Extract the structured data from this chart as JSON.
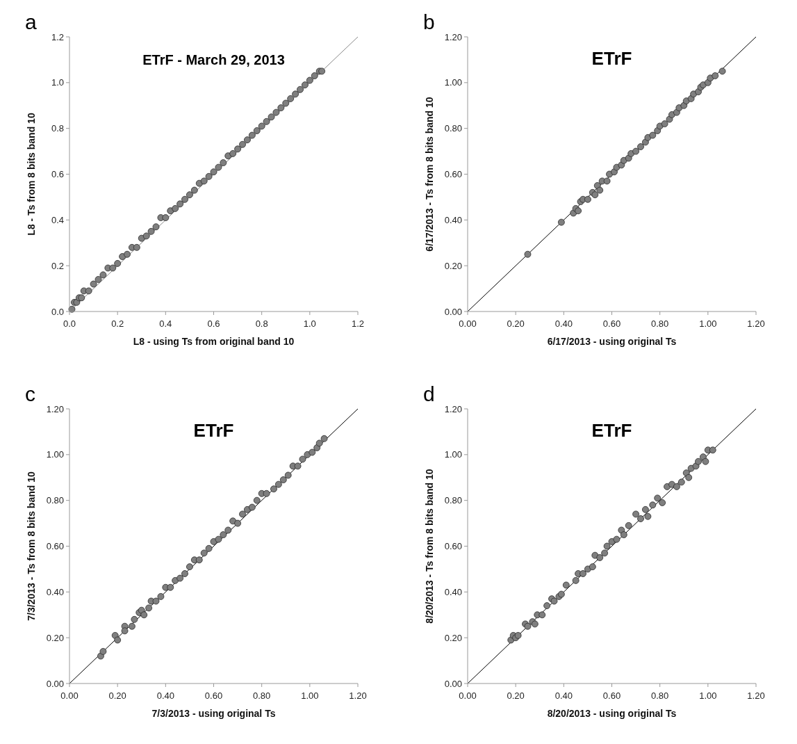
{
  "chart_data": [
    {
      "type": "scatter",
      "title": "ETrF - March 29, 2013",
      "xlabel": "L8 - using Ts from original band 10",
      "ylabel": "L8 -  Ts  from 8 bits band 10",
      "annotations": [
        "a"
      ],
      "xlim": [
        0,
        1.2
      ],
      "ylim": [
        0,
        1.2
      ],
      "xticks": [
        {
          "value": 0,
          "label": "0.0"
        },
        0.2,
        0.4,
        0.6,
        0.8,
        {
          "value": 1,
          "label": "1.0"
        },
        1.2
      ],
      "yticks": [
        {
          "value": 0,
          "label": "0.0"
        },
        0.2,
        0.4,
        0.6,
        0.8,
        {
          "value": 1,
          "label": "1.0"
        },
        1.2
      ],
      "grid": false,
      "series": [
        {
          "type": "line",
          "color": "#888888",
          "line_style": "solid",
          "x": [
            0,
            1.2
          ],
          "values": [
            0,
            1.2
          ]
        },
        {
          "color": "#7f7f7f",
          "marker": "circle",
          "x": [
            0.01,
            0.02,
            0.03,
            0.04,
            0.05,
            0.06,
            0.08,
            0.1,
            0.12,
            0.14,
            0.16,
            0.18,
            0.2,
            0.22,
            0.24,
            0.26,
            0.28,
            0.3,
            0.32,
            0.34,
            0.36,
            0.38,
            0.4,
            0.42,
            0.44,
            0.46,
            0.48,
            0.5,
            0.52,
            0.54,
            0.56,
            0.58,
            0.6,
            0.62,
            0.64,
            0.66,
            0.68,
            0.7,
            0.72,
            0.74,
            0.76,
            0.78,
            0.8,
            0.82,
            0.84,
            0.86,
            0.88,
            0.9,
            0.92,
            0.94,
            0.96,
            0.98,
            1.0,
            1.02,
            1.04,
            1.05
          ],
          "values": [
            0.01,
            0.04,
            0.04,
            0.06,
            0.06,
            0.09,
            0.09,
            0.12,
            0.14,
            0.16,
            0.19,
            0.19,
            0.21,
            0.24,
            0.25,
            0.28,
            0.28,
            0.32,
            0.33,
            0.35,
            0.37,
            0.41,
            0.41,
            0.44,
            0.45,
            0.47,
            0.49,
            0.51,
            0.53,
            0.56,
            0.57,
            0.59,
            0.61,
            0.63,
            0.65,
            0.68,
            0.69,
            0.71,
            0.73,
            0.75,
            0.77,
            0.79,
            0.81,
            0.83,
            0.85,
            0.87,
            0.89,
            0.91,
            0.93,
            0.95,
            0.97,
            0.99,
            1.01,
            1.03,
            1.05,
            1.05
          ]
        }
      ]
    },
    {
      "type": "scatter",
      "title": "ETrF",
      "xlabel": "6/17/2013 - using original  Ts",
      "ylabel": "6/17/2013 -   Ts from 8 bits band 10",
      "annotations": [
        "b"
      ],
      "xlim": [
        0,
        1.2
      ],
      "ylim": [
        0,
        1.2
      ],
      "xticks": [
        {
          "value": 0,
          "label": "0.00"
        },
        {
          "value": 0.2,
          "label": "0.20"
        },
        {
          "value": 0.4,
          "label": "0.40"
        },
        {
          "value": 0.6,
          "label": "0.60"
        },
        {
          "value": 0.8,
          "label": "0.80"
        },
        {
          "value": 1,
          "label": "1.00"
        },
        {
          "value": 1.2,
          "label": "1.20"
        }
      ],
      "yticks": [
        {
          "value": 0,
          "label": "0.00"
        },
        {
          "value": 0.2,
          "label": "0.20"
        },
        {
          "value": 0.4,
          "label": "0.40"
        },
        {
          "value": 0.6,
          "label": "0.60"
        },
        {
          "value": 0.8,
          "label": "0.80"
        },
        {
          "value": 1,
          "label": "1.00"
        },
        {
          "value": 1.2,
          "label": "1.20"
        }
      ],
      "grid": false,
      "series": [
        {
          "type": "line",
          "color": "#000000",
          "line_style": "solid",
          "x": [
            0,
            1.2
          ],
          "values": [
            0,
            1.2
          ]
        },
        {
          "color": "#7f7f7f",
          "marker": "circle",
          "x": [
            0.25,
            0.39,
            0.44,
            0.45,
            0.46,
            0.47,
            0.48,
            0.5,
            0.52,
            0.53,
            0.54,
            0.55,
            0.56,
            0.58,
            0.59,
            0.61,
            0.62,
            0.64,
            0.65,
            0.67,
            0.68,
            0.7,
            0.72,
            0.74,
            0.75,
            0.77,
            0.79,
            0.8,
            0.82,
            0.84,
            0.85,
            0.87,
            0.88,
            0.9,
            0.91,
            0.93,
            0.94,
            0.96,
            0.97,
            0.98,
            1.0,
            1.01,
            1.03,
            1.06
          ],
          "values": [
            0.25,
            0.39,
            0.43,
            0.45,
            0.44,
            0.48,
            0.49,
            0.49,
            0.52,
            0.51,
            0.55,
            0.53,
            0.57,
            0.57,
            0.6,
            0.61,
            0.63,
            0.64,
            0.66,
            0.67,
            0.69,
            0.7,
            0.72,
            0.74,
            0.76,
            0.77,
            0.79,
            0.81,
            0.82,
            0.84,
            0.86,
            0.87,
            0.89,
            0.9,
            0.92,
            0.93,
            0.95,
            0.96,
            0.98,
            0.99,
            1.0,
            1.02,
            1.03,
            1.05
          ]
        }
      ]
    },
    {
      "type": "scatter",
      "title": "ETrF",
      "xlabel": "7/3/2013 - using original  Ts",
      "ylabel": "7/3/2013 -   Ts from 8 bits band 10",
      "annotations": [
        "c"
      ],
      "xlim": [
        0,
        1.2
      ],
      "ylim": [
        0,
        1.2
      ],
      "xticks": [
        {
          "value": 0,
          "label": "0.00"
        },
        {
          "value": 0.2,
          "label": "0.20"
        },
        {
          "value": 0.4,
          "label": "0.40"
        },
        {
          "value": 0.6,
          "label": "0.60"
        },
        {
          "value": 0.8,
          "label": "0.80"
        },
        {
          "value": 1,
          "label": "1.00"
        },
        {
          "value": 1.2,
          "label": "1.20"
        }
      ],
      "yticks": [
        {
          "value": 0,
          "label": "0.00"
        },
        {
          "value": 0.2,
          "label": "0.20"
        },
        {
          "value": 0.4,
          "label": "0.40"
        },
        {
          "value": 0.6,
          "label": "0.60"
        },
        {
          "value": 0.8,
          "label": "0.80"
        },
        {
          "value": 1,
          "label": "1.00"
        },
        {
          "value": 1.2,
          "label": "1.20"
        }
      ],
      "grid": false,
      "series": [
        {
          "type": "line",
          "color": "#000000",
          "line_style": "solid",
          "x": [
            0,
            1.2
          ],
          "values": [
            0,
            1.2
          ]
        },
        {
          "color": "#7f7f7f",
          "marker": "circle",
          "x": [
            0.13,
            0.14,
            0.19,
            0.2,
            0.23,
            0.23,
            0.26,
            0.27,
            0.29,
            0.3,
            0.31,
            0.33,
            0.34,
            0.36,
            0.38,
            0.4,
            0.42,
            0.44,
            0.46,
            0.48,
            0.5,
            0.52,
            0.54,
            0.56,
            0.58,
            0.6,
            0.62,
            0.64,
            0.66,
            0.68,
            0.7,
            0.72,
            0.74,
            0.76,
            0.78,
            0.8,
            0.82,
            0.85,
            0.87,
            0.89,
            0.91,
            0.93,
            0.95,
            0.97,
            0.99,
            1.01,
            1.03,
            1.04,
            1.06
          ],
          "values": [
            0.12,
            0.14,
            0.21,
            0.19,
            0.25,
            0.23,
            0.25,
            0.28,
            0.31,
            0.32,
            0.3,
            0.33,
            0.36,
            0.36,
            0.38,
            0.42,
            0.42,
            0.45,
            0.46,
            0.48,
            0.51,
            0.54,
            0.54,
            0.57,
            0.59,
            0.62,
            0.63,
            0.65,
            0.67,
            0.71,
            0.7,
            0.74,
            0.76,
            0.77,
            0.8,
            0.83,
            0.83,
            0.85,
            0.87,
            0.89,
            0.91,
            0.95,
            0.95,
            0.98,
            1.0,
            1.01,
            1.03,
            1.05,
            1.07
          ]
        }
      ]
    },
    {
      "type": "scatter",
      "title": "ETrF",
      "xlabel": "8/20/2013 - using original  Ts",
      "ylabel": "8/20/2013 -   Ts from 8 bits band 10",
      "annotations": [
        "d"
      ],
      "xlim": [
        0,
        1.2
      ],
      "ylim": [
        0,
        1.2
      ],
      "xticks": [
        {
          "value": 0,
          "label": "0.00"
        },
        {
          "value": 0.2,
          "label": "0.20"
        },
        {
          "value": 0.4,
          "label": "0.40"
        },
        {
          "value": 0.6,
          "label": "0.60"
        },
        {
          "value": 0.8,
          "label": "0.80"
        },
        {
          "value": 1,
          "label": "1.00"
        },
        {
          "value": 1.2,
          "label": "1.20"
        }
      ],
      "yticks": [
        {
          "value": 0,
          "label": "0.00"
        },
        {
          "value": 0.2,
          "label": "0.20"
        },
        {
          "value": 0.4,
          "label": "0.40"
        },
        {
          "value": 0.6,
          "label": "0.60"
        },
        {
          "value": 0.8,
          "label": "0.80"
        },
        {
          "value": 1,
          "label": "1.00"
        },
        {
          "value": 1.2,
          "label": "1.20"
        }
      ],
      "grid": false,
      "series": [
        {
          "type": "line",
          "color": "#000000",
          "line_style": "solid",
          "x": [
            0,
            1.2
          ],
          "values": [
            0,
            1.2
          ]
        },
        {
          "color": "#7f7f7f",
          "marker": "circle",
          "x": [
            0.18,
            0.19,
            0.2,
            0.21,
            0.24,
            0.25,
            0.27,
            0.28,
            0.29,
            0.31,
            0.33,
            0.35,
            0.36,
            0.38,
            0.39,
            0.41,
            0.45,
            0.46,
            0.48,
            0.5,
            0.52,
            0.53,
            0.55,
            0.57,
            0.58,
            0.6,
            0.62,
            0.64,
            0.65,
            0.67,
            0.7,
            0.72,
            0.74,
            0.75,
            0.77,
            0.79,
            0.81,
            0.83,
            0.85,
            0.87,
            0.89,
            0.91,
            0.92,
            0.93,
            0.95,
            0.96,
            0.98,
            0.99,
            1.0,
            1.02
          ],
          "values": [
            0.19,
            0.21,
            0.2,
            0.21,
            0.26,
            0.25,
            0.27,
            0.26,
            0.3,
            0.3,
            0.34,
            0.37,
            0.36,
            0.38,
            0.39,
            0.43,
            0.45,
            0.48,
            0.48,
            0.5,
            0.51,
            0.56,
            0.55,
            0.57,
            0.6,
            0.62,
            0.63,
            0.67,
            0.65,
            0.69,
            0.74,
            0.72,
            0.76,
            0.73,
            0.78,
            0.81,
            0.79,
            0.86,
            0.87,
            0.86,
            0.88,
            0.92,
            0.9,
            0.94,
            0.95,
            0.97,
            0.99,
            0.97,
            1.02,
            1.02
          ]
        }
      ]
    }
  ]
}
